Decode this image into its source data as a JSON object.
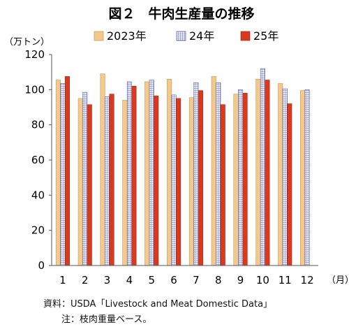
{
  "chart_data": {
    "type": "bar",
    "title": "図２　牛肉生産量の推移",
    "ylabel": "（万トン）",
    "xlabel": "（月）",
    "ylim": [
      0,
      120
    ],
    "yticks": [
      0,
      20,
      40,
      60,
      80,
      100,
      120
    ],
    "categories": [
      "1",
      "2",
      "3",
      "4",
      "5",
      "6",
      "7",
      "8",
      "9",
      "10",
      "11",
      "12"
    ],
    "legend_position": "top",
    "grid": false,
    "series": [
      {
        "name": "2023年",
        "color": "#f5c98a",
        "values": [
          105.5,
          95,
          109,
          94,
          104.5,
          106,
          95.5,
          107.5,
          97.5,
          106,
          103.5,
          99.5
        ]
      },
      {
        "name": "24年",
        "color": "#b8c2e8",
        "values": [
          103.5,
          98.5,
          96,
          104.5,
          105.5,
          97,
          104,
          104,
          100,
          112,
          100.5,
          100
        ]
      },
      {
        "name": "25年",
        "color": "#d93a1e",
        "values": [
          107.5,
          91.5,
          97.5,
          102,
          96.5,
          95,
          99.5,
          91.5,
          98,
          105.5,
          92,
          null
        ]
      }
    ]
  },
  "notes": {
    "source": "資料：USDA「Livestock and Meat Domestic Data」",
    "footnote": "注：枝肉重量ベース。"
  }
}
